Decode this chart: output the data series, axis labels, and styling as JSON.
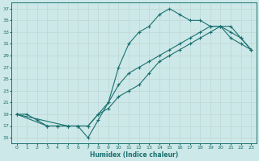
{
  "xlabel": "Humidex (Indice chaleur)",
  "bg_color": "#cde8e8",
  "grid_color": "#c0d8d8",
  "line_color": "#1a7070",
  "xlim": [
    -0.5,
    23.5
  ],
  "ylim": [
    14,
    38
  ],
  "xticks": [
    0,
    1,
    2,
    3,
    4,
    5,
    6,
    7,
    8,
    9,
    10,
    11,
    12,
    13,
    14,
    15,
    16,
    17,
    18,
    19,
    20,
    21,
    22,
    23
  ],
  "yticks": [
    15,
    17,
    19,
    21,
    23,
    25,
    27,
    29,
    31,
    33,
    35,
    37
  ],
  "series1_x": [
    0,
    1,
    2,
    3,
    4,
    5,
    6,
    7,
    8,
    9,
    10,
    11,
    12,
    13,
    14,
    15,
    16,
    17,
    18,
    19,
    20,
    21,
    22,
    23
  ],
  "series1_y": [
    19,
    19,
    18,
    17,
    17,
    17,
    17,
    15,
    18,
    21,
    27,
    31,
    33,
    34,
    36,
    37,
    36,
    35,
    35,
    34,
    34,
    32,
    31,
    30
  ],
  "series2_x": [
    0,
    3,
    4,
    5,
    6,
    7,
    8,
    9,
    10,
    11,
    12,
    13,
    14,
    15,
    16,
    17,
    18,
    19,
    20,
    21,
    22,
    23
  ],
  "series2_y": [
    19,
    17,
    17,
    17,
    17,
    17,
    19,
    20,
    22,
    23,
    24,
    26,
    28,
    29,
    30,
    31,
    32,
    33,
    34,
    34,
    32,
    30
  ],
  "series3_x": [
    0,
    5,
    6,
    7,
    8,
    9,
    10,
    11,
    12,
    13,
    14,
    15,
    16,
    17,
    18,
    19,
    20,
    21,
    22,
    23
  ],
  "series3_y": [
    19,
    17,
    17,
    17,
    19,
    21,
    24,
    26,
    27,
    28,
    29,
    30,
    31,
    32,
    33,
    34,
    34,
    33,
    32,
    30
  ]
}
